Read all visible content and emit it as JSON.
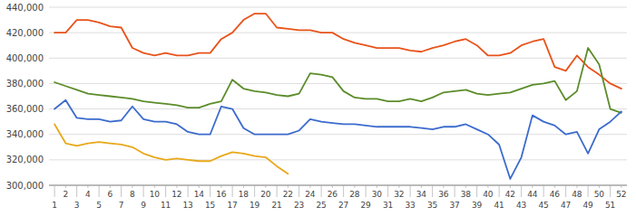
{
  "chart_data": {
    "type": "line",
    "x": [
      1,
      2,
      3,
      4,
      5,
      6,
      7,
      8,
      9,
      10,
      11,
      12,
      13,
      14,
      15,
      16,
      17,
      18,
      19,
      20,
      21,
      22,
      23,
      24,
      25,
      26,
      27,
      28,
      29,
      30,
      31,
      32,
      33,
      34,
      35,
      36,
      37,
      38,
      39,
      40,
      41,
      42,
      43,
      44,
      45,
      46,
      47,
      48,
      49,
      50,
      51,
      52
    ],
    "series": [
      {
        "color": "#e8531a",
        "values": [
          420000,
          420000,
          430000,
          430000,
          428000,
          425000,
          424000,
          408000,
          404000,
          402000,
          404000,
          402000,
          402000,
          404000,
          404000,
          415000,
          420000,
          430000,
          435000,
          435000,
          424000,
          423000,
          422000,
          422000,
          420000,
          420000,
          415000,
          412000,
          410000,
          408000,
          408000,
          408000,
          406000,
          405000,
          408000,
          410000,
          413000,
          415000,
          410000,
          402000,
          402000,
          404000,
          410000,
          413000,
          415000,
          393000,
          390000,
          402000,
          393000,
          387000,
          380000,
          376000
        ]
      },
      {
        "color": "#5b8c2a",
        "values": [
          381000,
          378000,
          375000,
          372000,
          371000,
          370000,
          369000,
          368000,
          366000,
          365000,
          364000,
          363000,
          361000,
          361000,
          364000,
          366000,
          383000,
          376000,
          374000,
          373000,
          371000,
          370000,
          372000,
          388000,
          387000,
          385000,
          374000,
          369000,
          368000,
          368000,
          366000,
          366000,
          368000,
          366000,
          369000,
          373000,
          374000,
          375000,
          372000,
          371000,
          372000,
          373000,
          376000,
          379000,
          380000,
          382000,
          367000,
          374000,
          408000,
          395000,
          360000,
          357000
        ]
      },
      {
        "color": "#3b6bcc",
        "values": [
          360000,
          367000,
          353000,
          352000,
          352000,
          350000,
          351000,
          362000,
          352000,
          350000,
          350000,
          348000,
          342000,
          340000,
          340000,
          362000,
          360000,
          345000,
          340000,
          340000,
          340000,
          340000,
          343000,
          352000,
          350000,
          349000,
          348000,
          348000,
          347000,
          346000,
          346000,
          346000,
          346000,
          345000,
          344000,
          346000,
          346000,
          348000,
          344000,
          340000,
          332000,
          305000,
          322000,
          355000,
          350000,
          347000,
          340000,
          342000,
          325000,
          344000,
          350000,
          358000
        ]
      },
      {
        "color": "#e8a81a",
        "values": [
          348000,
          333000,
          331000,
          333000,
          334000,
          333000,
          332000,
          330000,
          325000,
          322000,
          320000,
          321000,
          320000,
          319000,
          319000,
          323000,
          326000,
          325000,
          323000,
          322000,
          315000,
          309000,
          null,
          null,
          null,
          null,
          null,
          null,
          null,
          null,
          null,
          null,
          null,
          null,
          null,
          null,
          null,
          null,
          null,
          null,
          null,
          null,
          null,
          null,
          null,
          null,
          null,
          null,
          null,
          null,
          null,
          null
        ]
      }
    ],
    "xlim": [
      0.5,
      52.5
    ],
    "xticks": [
      1,
      2,
      3,
      4,
      5,
      6,
      7,
      8,
      9,
      10,
      11,
      12,
      13,
      14,
      15,
      16,
      17,
      18,
      19,
      20,
      21,
      22,
      23,
      24,
      25,
      26,
      27,
      28,
      29,
      30,
      31,
      32,
      33,
      34,
      35,
      36,
      37,
      38,
      39,
      40,
      41,
      42,
      43,
      44,
      45,
      46,
      47,
      48,
      49,
      50,
      51,
      52
    ],
    "ylim": [
      300000,
      440000
    ],
    "yticks": [
      {
        "value": 300000,
        "label": "300,000"
      },
      {
        "value": 320000,
        "label": "320,000"
      },
      {
        "value": 340000,
        "label": "340,000"
      },
      {
        "value": 360000,
        "label": "360,000"
      },
      {
        "value": 380000,
        "label": "380,000"
      },
      {
        "value": 400000,
        "label": "400,000"
      },
      {
        "value": 420000,
        "label": "420,000"
      },
      {
        "value": 440000,
        "label": "440,000"
      }
    ],
    "grid": true
  }
}
